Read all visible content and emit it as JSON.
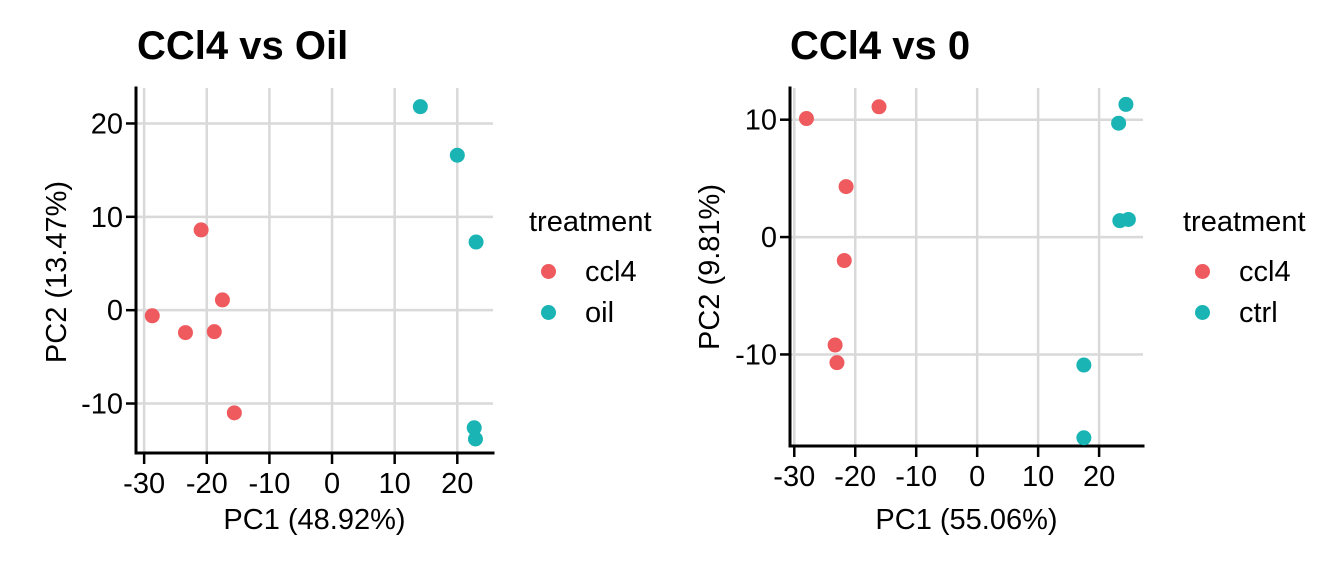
{
  "style": {
    "background": "#FFFFFF",
    "grid_color": "#D9D9D9",
    "axis_color": "#000000",
    "text_color": "#000000",
    "ccl4_color": "#EE5A5E",
    "oil_color": "#1AB4B4",
    "ctrl_color": "#1AB4B4"
  },
  "chart_data": [
    {
      "type": "scatter",
      "title": "CCl4 vs Oil",
      "xlabel": "PC1 (48.92%)",
      "ylabel": "PC2 (13.47%)",
      "legend_title": "treatment",
      "legend_position": "right",
      "grid": true,
      "xlim": [
        -31.3,
        25.7
      ],
      "ylim": [
        -15.3,
        23.8
      ],
      "xticks": [
        -30,
        -20,
        -10,
        0,
        10,
        20
      ],
      "yticks": [
        -10,
        0,
        10,
        20
      ],
      "series": [
        {
          "name": "ccl4",
          "color": "#EE5A5E",
          "points": [
            [
              -28.7,
              -0.6
            ],
            [
              -23.4,
              -2.4
            ],
            [
              -20.9,
              8.6
            ],
            [
              -18.8,
              -2.3
            ],
            [
              -17.5,
              1.1
            ],
            [
              -15.6,
              -11.0
            ]
          ]
        },
        {
          "name": "oil",
          "color": "#1AB4B4",
          "points": [
            [
              14.1,
              21.8
            ],
            [
              20.0,
              16.6
            ],
            [
              23.0,
              7.3
            ],
            [
              22.7,
              -12.6
            ],
            [
              22.9,
              -13.8
            ]
          ]
        }
      ]
    },
    {
      "type": "scatter",
      "title": "CCl4 vs 0",
      "xlabel": "PC1 (55.06%)",
      "ylabel": "PC2 (9.81%)",
      "legend_title": "treatment",
      "legend_position": "right",
      "grid": true,
      "xlim": [
        -30.7,
        27.2
      ],
      "ylim": [
        -17.8,
        12.7
      ],
      "xticks": [
        -30,
        -20,
        -10,
        0,
        10,
        20
      ],
      "yticks": [
        -10,
        0,
        10
      ],
      "series": [
        {
          "name": "ccl4",
          "color": "#EE5A5E",
          "points": [
            [
              -28.0,
              10.1
            ],
            [
              -23.3,
              -9.2
            ],
            [
              -23.0,
              -10.7
            ],
            [
              -21.8,
              -2.0
            ],
            [
              -21.5,
              4.3
            ],
            [
              -16.1,
              11.1
            ]
          ]
        },
        {
          "name": "ctrl",
          "color": "#1AB4B4",
          "points": [
            [
              17.5,
              -10.9
            ],
            [
              17.5,
              -17.1
            ],
            [
              23.2,
              9.7
            ],
            [
              23.4,
              1.4
            ],
            [
              24.4,
              11.3
            ],
            [
              24.8,
              1.5
            ]
          ]
        }
      ]
    }
  ]
}
